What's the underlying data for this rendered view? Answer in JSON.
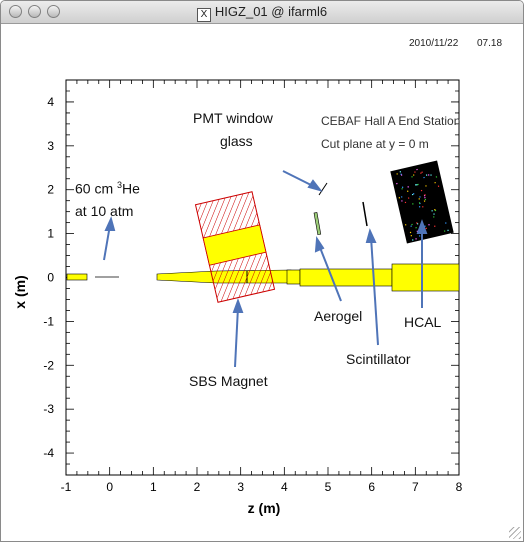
{
  "window": {
    "title": "HIGZ_01 @ ifarml6",
    "title_icon": "X",
    "date": "2010/11/22",
    "time": "07.18"
  },
  "colors": {
    "magnet_red": "#cc0000",
    "beamline_yellow": "#ffff00",
    "arrow_blue": "#4f74b8",
    "hcal_black": "#000000"
  },
  "plot": {
    "header_line1": "CEBAF Hall A End Station",
    "header_line2": "Cut plane at y = 0  m",
    "x_axis_label": "z (m)",
    "y_axis_label": "x (m)",
    "xlim": [
      -1,
      8
    ],
    "ylim": [
      -4.5,
      4.5
    ],
    "x_ticks": [
      "-1",
      "0",
      "1",
      "2",
      "3",
      "4",
      "5",
      "6",
      "7",
      "8"
    ],
    "y_ticks": [
      "4",
      "3",
      "2",
      "1",
      "0",
      "-1",
      "-2",
      "-3",
      "-4"
    ]
  },
  "annotations": {
    "pmt_line1": "PMT window",
    "pmt_line2": "glass",
    "target_line1": "60 cm",
    "target_sup": "3",
    "target_line1_rest": "He",
    "target_line2": "at 10 atm",
    "aerogel": "Aerogel",
    "hcal": "HCAL",
    "scintillator": "Scintillator",
    "sbs_magnet": "SBS Magnet"
  }
}
